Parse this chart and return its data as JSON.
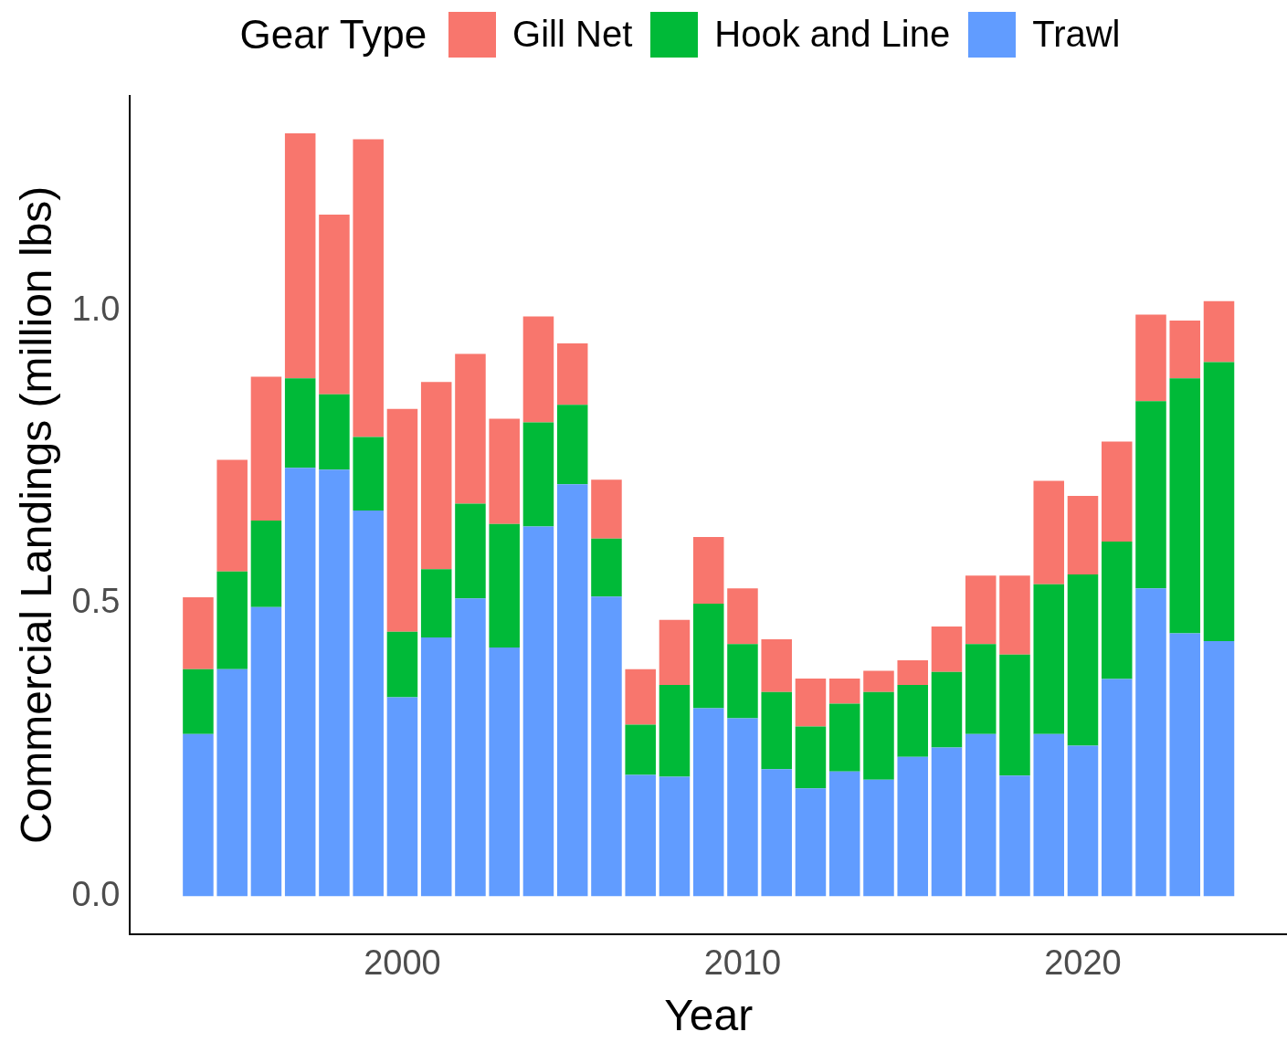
{
  "chart_data": {
    "type": "bar",
    "stacked": true,
    "xlabel": "Year",
    "ylabel": "Commercial Landings (million lbs)",
    "legend_title": "Gear Type",
    "legend": "top",
    "grid": false,
    "x": [
      1994,
      1995,
      1996,
      1997,
      1998,
      1999,
      2000,
      2001,
      2002,
      2003,
      2004,
      2005,
      2006,
      2007,
      2008,
      2009,
      2010,
      2011,
      2012,
      2013,
      2014,
      2015,
      2016,
      2017,
      2018,
      2019,
      2020,
      2021,
      2022,
      2023,
      2024
    ],
    "xlim": [
      1992,
      2026
    ],
    "xticks": [
      2000,
      2010,
      2020
    ],
    "ylim": [
      -0.065,
      1.368
    ],
    "yticks": [
      {
        "value": 0,
        "label": "0.0"
      },
      {
        "value": 0.5,
        "label": "0.5"
      },
      {
        "value": 1,
        "label": "1.0"
      }
    ],
    "series": [
      {
        "name": "Trawl",
        "color": "#619cff",
        "values": [
          0.277,
          0.388,
          0.494,
          0.732,
          0.729,
          0.659,
          0.34,
          0.442,
          0.509,
          0.425,
          0.632,
          0.704,
          0.512,
          0.207,
          0.204,
          0.321,
          0.304,
          0.217,
          0.184,
          0.213,
          0.199,
          0.238,
          0.254,
          0.277,
          0.206,
          0.277,
          0.257,
          0.371,
          0.526,
          0.449,
          0.436
        ]
      },
      {
        "name": "Hook and Line",
        "color": "#00ba38",
        "values": [
          0.111,
          0.167,
          0.148,
          0.153,
          0.129,
          0.126,
          0.112,
          0.117,
          0.162,
          0.211,
          0.178,
          0.136,
          0.099,
          0.086,
          0.157,
          0.179,
          0.127,
          0.132,
          0.106,
          0.116,
          0.15,
          0.123,
          0.129,
          0.154,
          0.207,
          0.256,
          0.293,
          0.235,
          0.32,
          0.436,
          0.477
        ]
      },
      {
        "name": "Gill Net",
        "color": "#f8766d",
        "values": [
          0.123,
          0.191,
          0.246,
          0.419,
          0.307,
          0.509,
          0.381,
          0.32,
          0.256,
          0.18,
          0.181,
          0.105,
          0.101,
          0.095,
          0.111,
          0.114,
          0.095,
          0.09,
          0.082,
          0.043,
          0.036,
          0.042,
          0.078,
          0.117,
          0.135,
          0.177,
          0.134,
          0.171,
          0.148,
          0.099,
          0.104
        ]
      }
    ]
  }
}
